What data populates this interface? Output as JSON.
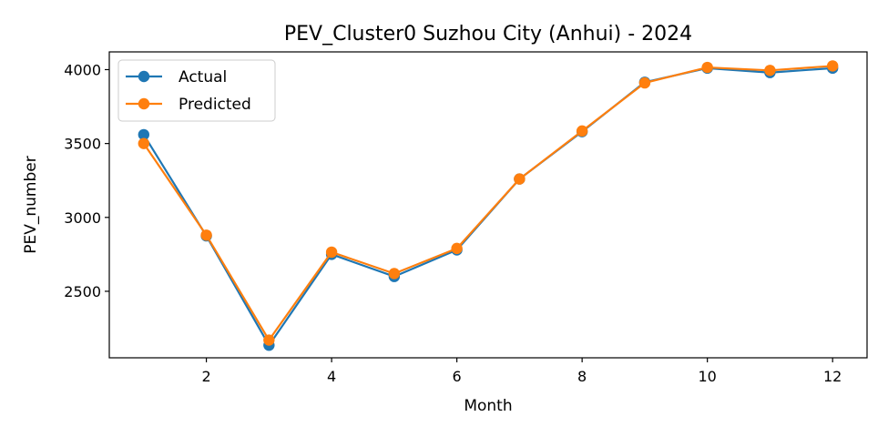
{
  "chart_data": {
    "type": "line",
    "title": "PEV_Cluster0 Suzhou City (Anhui) - 2024",
    "xlabel": "Month",
    "ylabel": "PEV_number",
    "x": [
      1,
      2,
      3,
      4,
      5,
      6,
      7,
      8,
      9,
      10,
      11,
      12
    ],
    "xlim": [
      0.45,
      12.55
    ],
    "ylim": [
      2050,
      4120
    ],
    "xticks": [
      2,
      4,
      6,
      8,
      10,
      12
    ],
    "yticks": [
      2500,
      3000,
      3500,
      4000
    ],
    "grid": false,
    "legend_position": "upper left",
    "series": [
      {
        "name": "Actual",
        "color": "#1f77b4",
        "marker": "circle",
        "values": [
          3560,
          2875,
          2135,
          2750,
          2600,
          2780,
          3260,
          3580,
          3915,
          4010,
          3980,
          4010
        ]
      },
      {
        "name": "Predicted",
        "color": "#ff7f0e",
        "marker": "circle",
        "values": [
          3500,
          2880,
          2170,
          2765,
          2620,
          2790,
          3260,
          3585,
          3910,
          4015,
          3995,
          4025
        ]
      }
    ]
  }
}
